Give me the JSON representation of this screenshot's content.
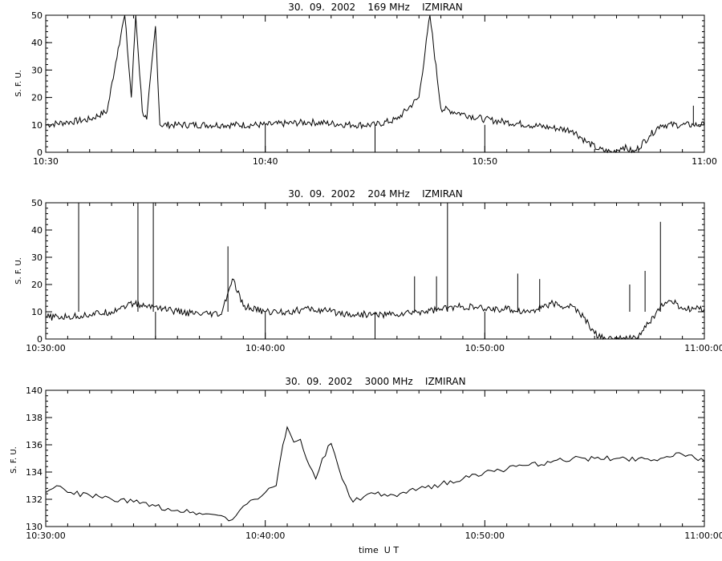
{
  "chart_data": [
    {
      "type": "line",
      "title": "30.  09.  2002    169 MHz    IZMIRAN",
      "ylabel": "S. F. U.",
      "xlabel": "",
      "xlim": [
        0,
        30
      ],
      "ylim": [
        0,
        50
      ],
      "yticks": [
        0,
        10,
        20,
        30,
        40,
        50
      ],
      "xticks": [
        {
          "minute": 0,
          "label": "10:30"
        },
        {
          "minute": 10,
          "label": "10:40"
        },
        {
          "minute": 20,
          "label": "10:50"
        },
        {
          "minute": 30,
          "label": "11:00"
        }
      ],
      "series": [
        {
          "x": [
            0,
            1,
            2,
            2.8,
            3.3,
            3.6,
            3.9,
            4.1,
            4.4,
            4.6,
            5.0,
            5.2,
            6,
            8,
            10,
            12,
            14,
            15,
            16,
            17,
            17.5,
            18,
            19,
            20,
            21,
            22,
            23,
            24,
            24.6,
            25.2,
            25.8,
            26.3,
            26.8,
            27.5,
            28,
            29,
            29.5,
            30
          ],
          "y": [
            10,
            11,
            12,
            15,
            38,
            50,
            20,
            50,
            15,
            12,
            46,
            10,
            10,
            10,
            10,
            11,
            10,
            10,
            12,
            20,
            50,
            16,
            14,
            12,
            11,
            10,
            9,
            8,
            4,
            1,
            0,
            2,
            0,
            6,
            10,
            10,
            10,
            10
          ]
        }
      ],
      "spikes": [
        {
          "x": 10,
          "y": 0
        },
        {
          "x": 15,
          "y": 0
        },
        {
          "x": 20,
          "y": 0
        },
        {
          "x": 29.5,
          "y": 17
        }
      ]
    },
    {
      "type": "line",
      "title": "30.  09.  2002    204 MHz    IZMIRAN",
      "ylabel": "S. F. U.",
      "xlabel": "",
      "xlim": [
        0,
        30
      ],
      "ylim": [
        0,
        50
      ],
      "yticks": [
        0,
        10,
        20,
        30,
        40,
        50
      ],
      "xticks": [
        {
          "minute": 0,
          "label": "10:30:00"
        },
        {
          "minute": 10,
          "label": "10:40:00"
        },
        {
          "minute": 20,
          "label": "10:50:00"
        },
        {
          "minute": 30,
          "label": "11:00:00"
        }
      ],
      "series": [
        {
          "x": [
            0,
            1,
            2,
            3,
            3.5,
            4,
            4.5,
            5,
            6,
            7,
            8,
            8.5,
            9,
            10,
            11,
            12,
            13,
            14,
            15,
            16,
            17,
            18,
            19,
            20,
            21,
            22,
            23,
            23.5,
            24,
            24.5,
            25,
            25.5,
            26,
            26.5,
            27,
            27.5,
            28,
            28.5,
            29,
            30
          ],
          "y": [
            8,
            8,
            9,
            10,
            12,
            13,
            12,
            12,
            10,
            9,
            9,
            22,
            12,
            10,
            10,
            11,
            10,
            9,
            9,
            9,
            10,
            11,
            12,
            11,
            11,
            10,
            13,
            12,
            12,
            8,
            2,
            0,
            0,
            0,
            1,
            6,
            12,
            14,
            11,
            11
          ]
        }
      ],
      "spikes": [
        {
          "x": 1.5,
          "y": 50
        },
        {
          "x": 4.2,
          "y": 50
        },
        {
          "x": 4.9,
          "y": 50
        },
        {
          "x": 8.3,
          "y": 34
        },
        {
          "x": 16.8,
          "y": 23
        },
        {
          "x": 17.8,
          "y": 23
        },
        {
          "x": 18.3,
          "y": 50
        },
        {
          "x": 21.5,
          "y": 24
        },
        {
          "x": 22.5,
          "y": 22
        },
        {
          "x": 26.6,
          "y": 20
        },
        {
          "x": 27.3,
          "y": 25
        },
        {
          "x": 28.0,
          "y": 43
        },
        {
          "x": 5.0,
          "y": -1
        },
        {
          "x": 10.0,
          "y": 0
        },
        {
          "x": 15.0,
          "y": -1
        },
        {
          "x": 20.0,
          "y": -1
        }
      ]
    },
    {
      "type": "line",
      "title": "30.  09.  2002    3000 MHz    IZMIRAN",
      "ylabel": "S. F. U.",
      "xlabel": "time  U T",
      "xlim": [
        0,
        30
      ],
      "ylim": [
        130,
        140
      ],
      "yticks": [
        130,
        132,
        134,
        136,
        138,
        140
      ],
      "xticks": [
        {
          "minute": 0,
          "label": "10:30:00"
        },
        {
          "minute": 10,
          "label": "10:40:00"
        },
        {
          "minute": 20,
          "label": "10:50:00"
        },
        {
          "minute": 30,
          "label": "11:00:00"
        }
      ],
      "series": [
        {
          "x": [
            0,
            0.5,
            1,
            2,
            3,
            4,
            5,
            6,
            7,
            8,
            8.5,
            9,
            9.5,
            10,
            10.5,
            10.8,
            11.0,
            11.3,
            11.6,
            12.0,
            12.3,
            12.6,
            13.0,
            13.5,
            14,
            14.5,
            15,
            16,
            17,
            18,
            19,
            20,
            21,
            22,
            23,
            24,
            25,
            26,
            27,
            28,
            29,
            30
          ],
          "y": [
            132.5,
            133,
            132.5,
            132.3,
            132,
            131.8,
            131.5,
            131.2,
            131,
            130.8,
            130.5,
            131.5,
            132,
            132.5,
            133,
            136,
            137.3,
            136.2,
            136.4,
            134.5,
            133.5,
            135,
            136.1,
            133.5,
            131.8,
            132.2,
            132.4,
            132.2,
            132.8,
            133.1,
            133.5,
            134,
            134.2,
            134.5,
            134.7,
            135,
            135,
            135,
            135,
            135,
            135.3,
            134.8
          ]
        }
      ]
    }
  ]
}
